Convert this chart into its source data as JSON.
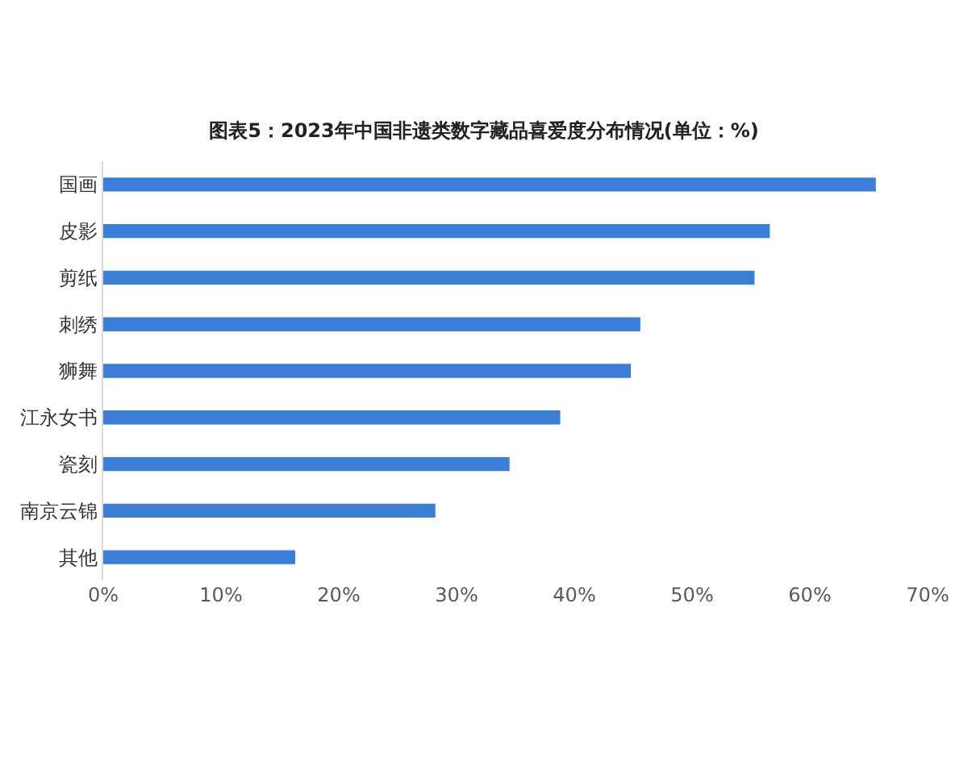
{
  "chart_data": {
    "type": "bar",
    "orientation": "horizontal",
    "title": "图表5：2023年中国非遗类数字藏品喜爱度分布情况(单位：%)",
    "categories": [
      "国画",
      "皮影",
      "剪纸",
      "刺绣",
      "狮舞",
      "江永女书",
      "瓷刻",
      "南京云锦",
      "其他"
    ],
    "values": [
      65.6,
      56.6,
      55.3,
      45.6,
      44.8,
      38.8,
      34.5,
      28.2,
      16.3
    ],
    "color": "#3a7ed8",
    "xlim": [
      0,
      70
    ],
    "xticks": [
      {
        "value": 0,
        "label": "0%"
      },
      {
        "value": 10,
        "label": "10%"
      },
      {
        "value": 20,
        "label": "20%"
      },
      {
        "value": 30,
        "label": "30%"
      },
      {
        "value": 40,
        "label": "40%"
      },
      {
        "value": 50,
        "label": "50%"
      },
      {
        "value": 60,
        "label": "60%"
      },
      {
        "value": 70,
        "label": "70%"
      }
    ],
    "grid": false,
    "legend": false
  }
}
